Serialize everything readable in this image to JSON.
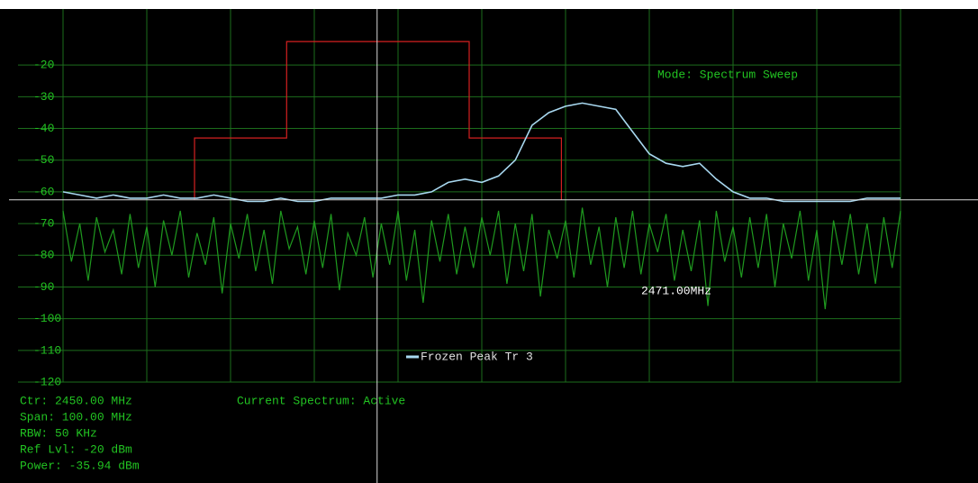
{
  "chart_data": {
    "type": "line",
    "ylim": [
      -120,
      -10
    ],
    "yticks": [
      -20,
      -30,
      -40,
      -50,
      -60,
      -70,
      -80,
      -90,
      -100,
      -110,
      -120
    ],
    "xlim": [
      2400,
      2500
    ],
    "xticks": [
      2400,
      2410,
      2420,
      2430,
      2440,
      2450,
      2460,
      2470,
      2480,
      2490,
      2500
    ],
    "grid": true,
    "grid_color": "#1c6e1c",
    "cursor": {
      "x": 2437.5,
      "y": -62.5,
      "color": "#d8d8d8"
    },
    "mode_label": "Mode: Spectrum Sweep",
    "marker_label": "2471.00MHz",
    "status": "Current Spectrum: Active",
    "info": [
      "Ctr: 2450.00 MHz",
      "Span: 100.00 MHz",
      "RBW: 50 KHz",
      "Ref Lvl: -20 dBm",
      "Power: -35.94 dBm"
    ],
    "legend": "bottom",
    "series": [
      {
        "color": "#1f9a1f",
        "x": [
          2400,
          2401,
          2402,
          2403,
          2404,
          2405,
          2406,
          2407,
          2408,
          2409,
          2410,
          2411,
          2412,
          2413,
          2414,
          2415,
          2416,
          2417,
          2418,
          2419,
          2420,
          2421,
          2422,
          2423,
          2424,
          2425,
          2426,
          2427,
          2428,
          2429,
          2430,
          2431,
          2432,
          2433,
          2434,
          2435,
          2436,
          2437,
          2438,
          2439,
          2440,
          2441,
          2442,
          2443,
          2444,
          2445,
          2446,
          2447,
          2448,
          2449,
          2450,
          2451,
          2452,
          2453,
          2454,
          2455,
          2456,
          2457,
          2458,
          2459,
          2460,
          2461,
          2462,
          2463,
          2464,
          2465,
          2466,
          2467,
          2468,
          2469,
          2470,
          2471,
          2472,
          2473,
          2474,
          2475,
          2476,
          2477,
          2478,
          2479,
          2480,
          2481,
          2482,
          2483,
          2484,
          2485,
          2486,
          2487,
          2488,
          2489,
          2490,
          2491,
          2492,
          2493,
          2494,
          2495,
          2496,
          2497,
          2498,
          2499,
          2500
        ],
        "values": [
          -66,
          -82,
          -70,
          -88,
          -68,
          -79,
          -72,
          -86,
          -67,
          -84,
          -71,
          -90,
          -69,
          -80,
          -66,
          -87,
          -73,
          -83,
          -68,
          -92,
          -70,
          -81,
          -67,
          -85,
          -72,
          -89,
          -66,
          -78,
          -71,
          -86,
          -69,
          -84,
          -67,
          -91,
          -73,
          -80,
          -68,
          -87,
          -70,
          -83,
          -66,
          -88,
          -72,
          -95,
          -69,
          -82,
          -67,
          -86,
          -71,
          -84,
          -68,
          -80,
          -66,
          -89,
          -70,
          -85,
          -67,
          -93,
          -72,
          -81,
          -69,
          -87,
          -65,
          -83,
          -71,
          -90,
          -68,
          -84,
          -66,
          -86,
          -70,
          -79,
          -67,
          -88,
          -72,
          -85,
          -69,
          -96,
          -66,
          -82,
          -71,
          -87,
          -68,
          -84,
          -67,
          -90,
          -70,
          -81,
          -66,
          -88,
          -72,
          -97,
          -69,
          -83,
          -67,
          -86,
          -70,
          -89,
          -68,
          -84,
          -66
        ]
      },
      {
        "color": "#d42020",
        "x": [
          2415.7,
          2415.7,
          2426.7,
          2426.7,
          2448.5,
          2448.5,
          2459.5,
          2459.5
        ],
        "values": [
          -62.5,
          -43,
          -43,
          -12.6,
          -12.6,
          -43,
          -43,
          -62.5
        ]
      },
      {
        "name": "Frozen Peak Tr 3",
        "color": "#a8d8f0",
        "x": [
          2400,
          2402,
          2404,
          2406,
          2408,
          2410,
          2412,
          2414,
          2416,
          2418,
          2420,
          2422,
          2424,
          2426,
          2428,
          2430,
          2432,
          2434,
          2436,
          2438,
          2440,
          2442,
          2444,
          2446,
          2448,
          2450,
          2452,
          2454,
          2456,
          2458,
          2460,
          2462,
          2464,
          2466,
          2468,
          2470,
          2472,
          2474,
          2476,
          2478,
          2480,
          2482,
          2484,
          2486,
          2488,
          2490,
          2492,
          2494,
          2496,
          2498,
          2500
        ],
        "values": [
          -60,
          -61,
          -62,
          -61,
          -62,
          -62,
          -61,
          -62,
          -62,
          -61,
          -62,
          -63,
          -63,
          -62,
          -63,
          -63,
          -62,
          -62,
          -62,
          -62,
          -61,
          -61,
          -60,
          -57,
          -56,
          -57,
          -55,
          -50,
          -39,
          -35,
          -33,
          -32,
          -33,
          -34,
          -41,
          -48,
          -51,
          -52,
          -51,
          -56,
          -60,
          -62,
          -62,
          -63,
          -63,
          -63,
          -63,
          -63,
          -62,
          -62,
          -62
        ]
      }
    ]
  }
}
